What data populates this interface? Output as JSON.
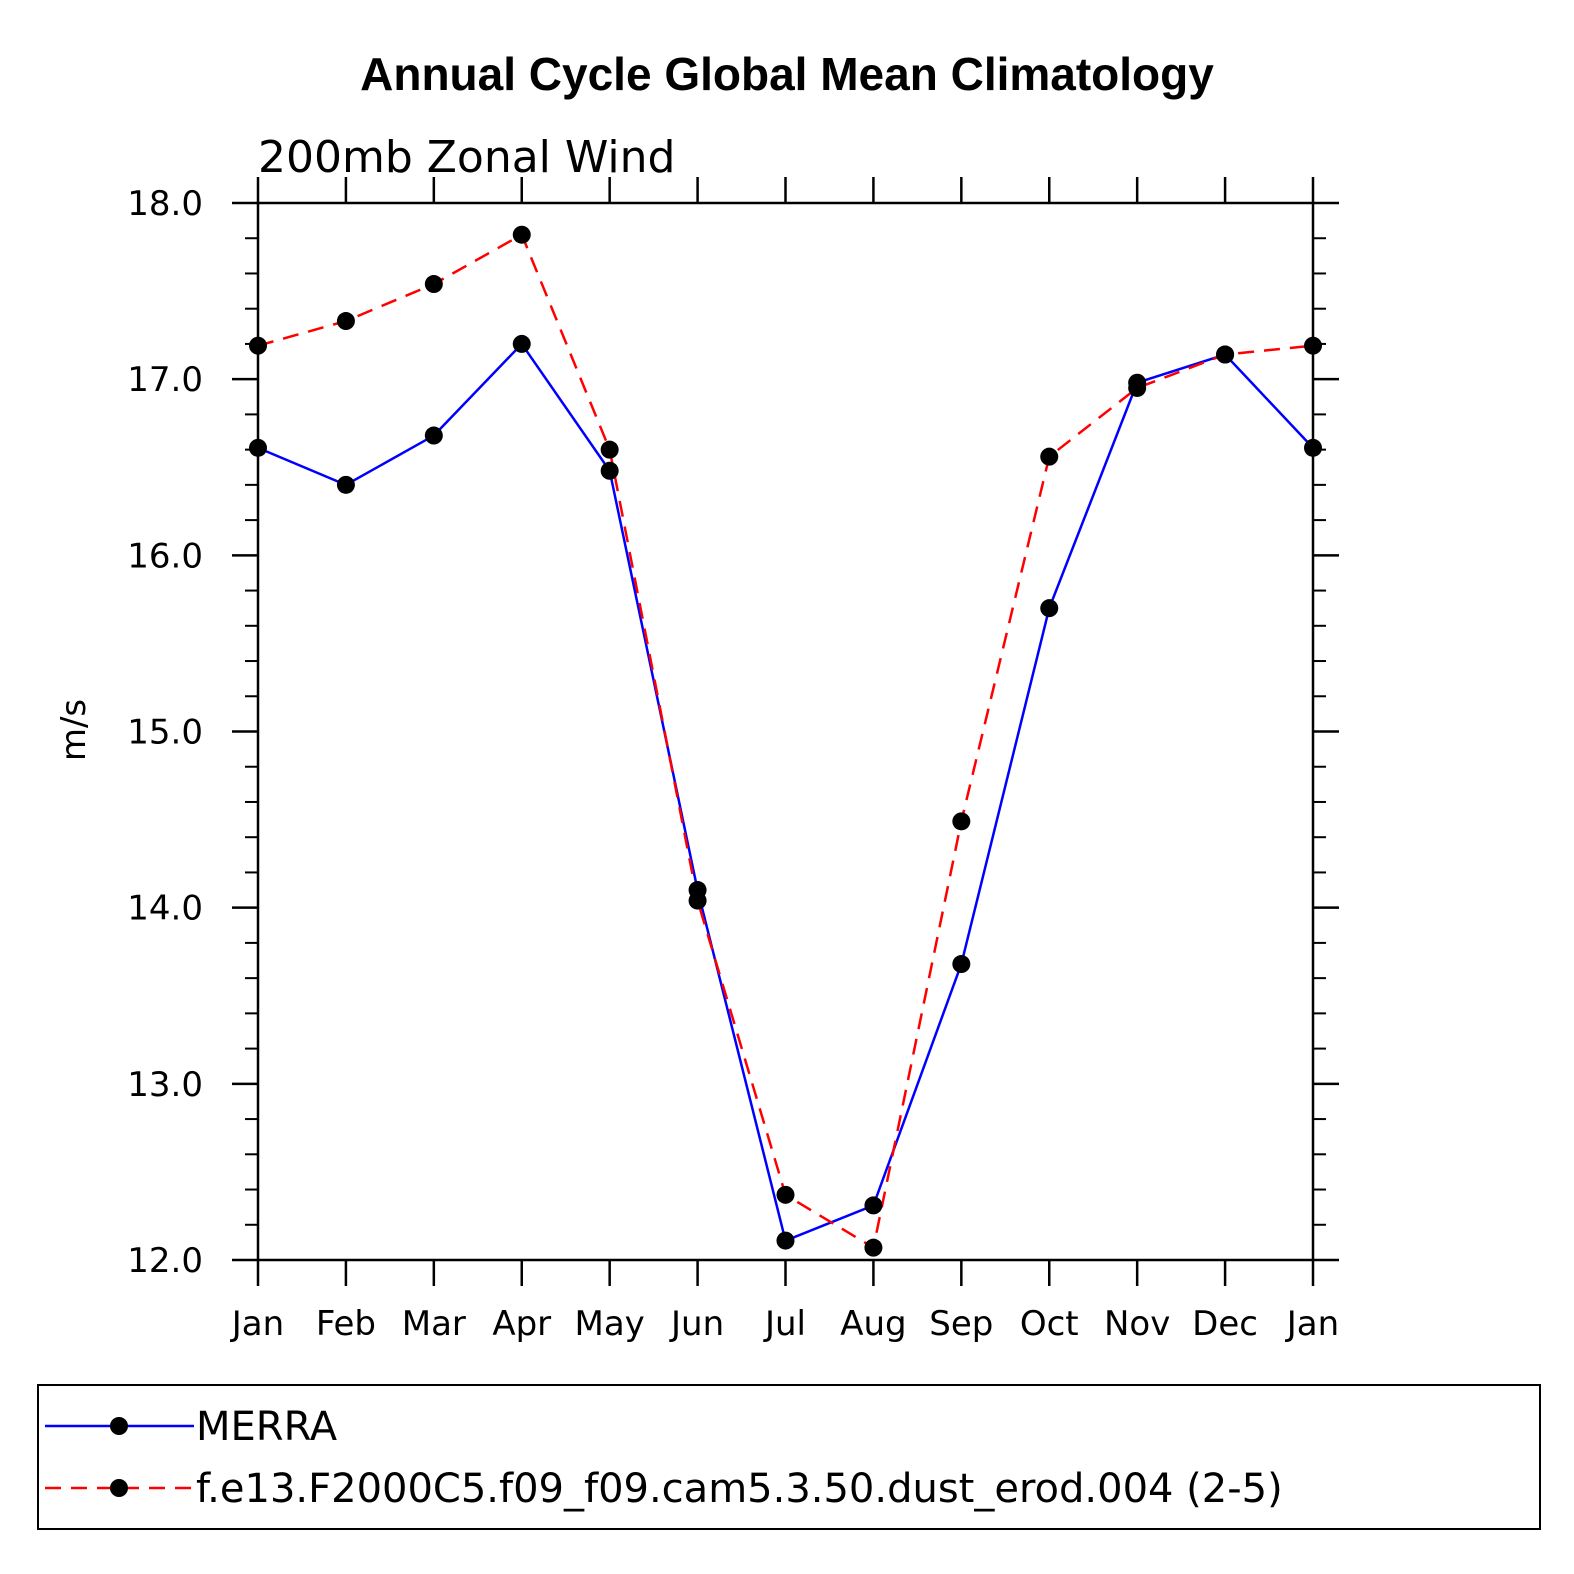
{
  "chart_data": {
    "type": "line",
    "title": "Annual Cycle Global Mean Climatology",
    "subtitle": "200mb Zonal Wind",
    "ylabel": "m/s",
    "xlabel": "",
    "categories": [
      "Jan",
      "Feb",
      "Mar",
      "Apr",
      "May",
      "Jun",
      "Jul",
      "Aug",
      "Sep",
      "Oct",
      "Nov",
      "Dec",
      "Jan"
    ],
    "ylim": [
      12.0,
      18.0
    ],
    "yticks": [
      "12.0",
      "13.0",
      "14.0",
      "15.0",
      "16.0",
      "17.0",
      "18.0"
    ],
    "series": [
      {
        "name": "MERRA",
        "color": "#0000ff",
        "dash": "solid",
        "marker": "filled-circle",
        "values": [
          16.61,
          16.4,
          16.68,
          17.2,
          16.48,
          14.1,
          12.11,
          12.31,
          13.68,
          15.7,
          16.98,
          17.14,
          16.61
        ]
      },
      {
        "name": "f.e13.F2000C5.f09_f09.cam5.3.50.dust_erod.004 (2-5)",
        "color": "#ff0000",
        "dash": "dashed",
        "marker": "filled-circle",
        "values": [
          17.19,
          17.33,
          17.54,
          17.82,
          16.6,
          14.04,
          12.37,
          12.07,
          14.49,
          16.56,
          16.95,
          17.14,
          17.19
        ]
      }
    ],
    "grid": false,
    "legend_position": "bottom"
  }
}
